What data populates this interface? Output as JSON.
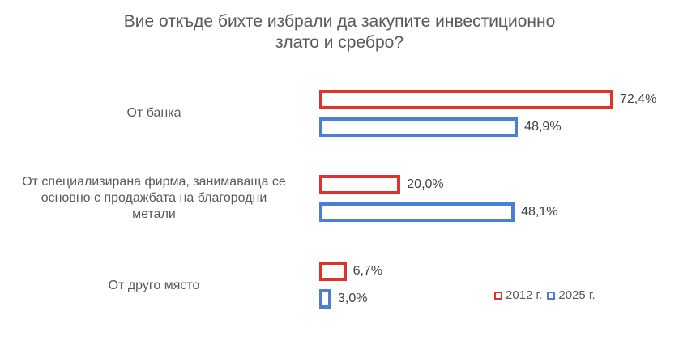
{
  "chart_data": {
    "type": "bar",
    "orientation": "horizontal",
    "title_lines": [
      "Вие откъде бихте избрали да закупите инвестиционно",
      "злато и сребро?"
    ],
    "categories": [
      {
        "label_lines": [
          "От банка"
        ]
      },
      {
        "label_lines": [
          "От специализирана фирма, занимаваща се",
          "основно с продажбата на благородни",
          "метали"
        ]
      },
      {
        "label_lines": [
          "От друго място"
        ]
      }
    ],
    "series": [
      {
        "name": "2012 г.",
        "color": "#E0332A",
        "values": [
          72.4,
          20.0,
          6.7
        ],
        "labels": [
          "72,4%",
          "20,0%",
          "6,7%"
        ]
      },
      {
        "name": "2025 г.",
        "color": "#4A7FD6",
        "values": [
          48.9,
          48.1,
          3.0
        ],
        "labels": [
          "48,9%",
          "48,1%",
          "3,0%"
        ]
      }
    ],
    "xlim": [
      0,
      72.4
    ],
    "legend_position": "bottom-right",
    "grid": false
  }
}
